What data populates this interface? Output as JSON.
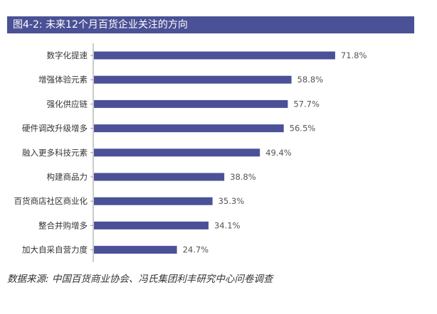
{
  "figure": {
    "title": "图4-2: 未来12个月百货企业关注的方向",
    "source": "数据来源: 中国百货商业协会、冯氏集团利丰研究中心问卷调查"
  },
  "colors": {
    "bar": "#4a5196",
    "title_bg": "#4a5196",
    "axis": "#999999"
  },
  "chart_data": {
    "type": "bar",
    "orientation": "horizontal",
    "categories": [
      "数字化提速",
      "增强体验元素",
      "强化供应链",
      "硬件调改升级增多",
      "融入更多科技元素",
      "构建商品力",
      "百货商店社区商业化",
      "整合并购增多",
      "加大自采自营力度"
    ],
    "values": [
      71.8,
      58.8,
      57.7,
      56.5,
      49.4,
      38.8,
      35.3,
      34.1,
      24.7
    ],
    "value_labels": [
      "71.8%",
      "58.8%",
      "57.7%",
      "56.5%",
      "49.4%",
      "38.8%",
      "35.3%",
      "34.1%",
      "24.7%"
    ],
    "unit": "%",
    "xlim": [
      0,
      80
    ],
    "grid": false,
    "legend": "none"
  }
}
